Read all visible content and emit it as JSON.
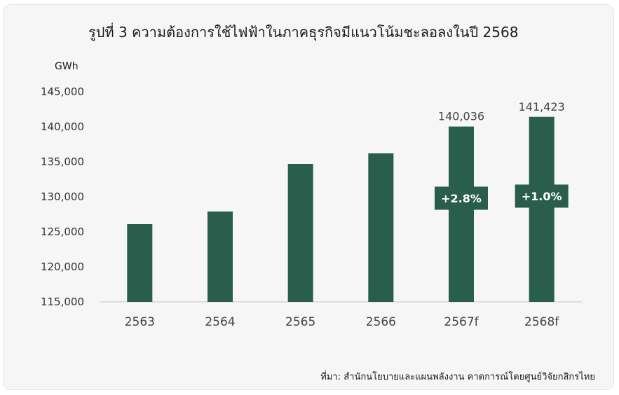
{
  "title": "รูปที่ 3 ความต้องการใช้ไฟฟ้าในภาคธุรกิจมีแนวโน้มชะลอลงในปี 2568",
  "unit_label": "GWh",
  "source": "ที่มา: สำนักนโยบายและแผนพลังงาน คาดการณ์โดยศูนย์วิจัยกสิกรไทย",
  "colors": {
    "bar": "#285e4b",
    "axis": "#c8c8c8",
    "background": "#f6f6f6"
  },
  "chart_data": {
    "type": "bar",
    "title": "รูปที่ 3 ความต้องการใช้ไฟฟ้าในภาคธุรกิจมีแนวโน้มชะลอลงในปี 2568",
    "ylabel": "GWh",
    "xlabel": "",
    "ylim": [
      115000,
      145000
    ],
    "yticks": [
      115000,
      120000,
      125000,
      130000,
      135000,
      140000,
      145000
    ],
    "ytick_labels": [
      "115,000",
      "120,000",
      "125,000",
      "130,000",
      "135,000",
      "140,000",
      "145,000"
    ],
    "categories": [
      "2563",
      "2564",
      "2565",
      "2566",
      "2567f",
      "2568f"
    ],
    "values": [
      126100,
      127900,
      134700,
      136200,
      140036,
      141423
    ],
    "data_labels": [
      "",
      "",
      "",
      "",
      "140,036",
      "141,423"
    ],
    "growth_labels": [
      "",
      "",
      "",
      "",
      "+2.8%",
      "+1.0%"
    ],
    "growth_label_values": [
      ", ",
      ", ",
      ", ",
      ", ",
      129800,
      130100
    ],
    "grid": false,
    "legend": "none"
  }
}
